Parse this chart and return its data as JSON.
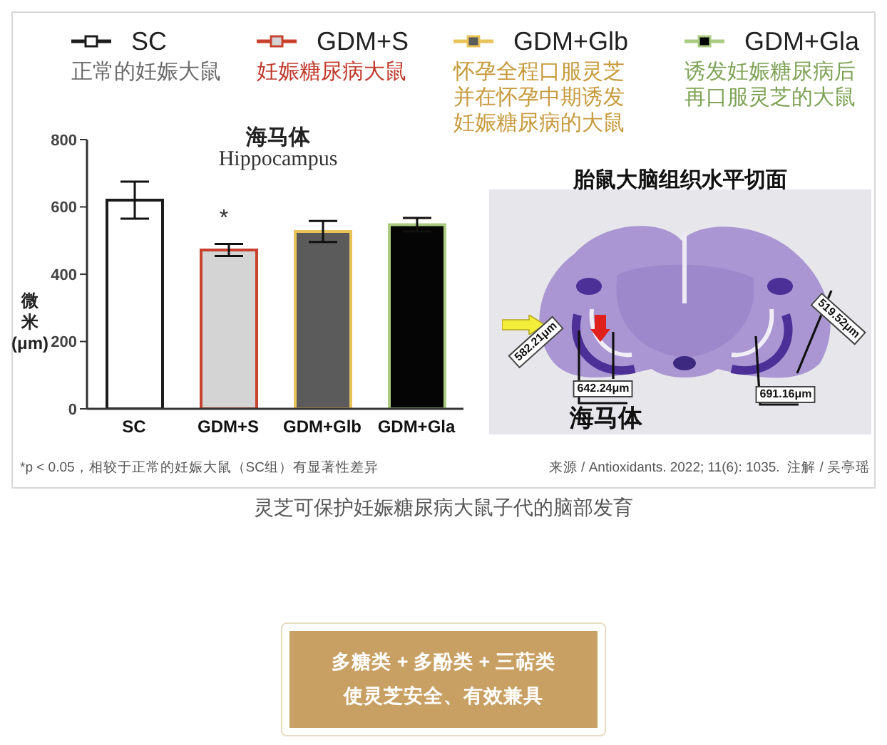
{
  "chart_data": [
    {
      "type": "bar",
      "title": "海马体",
      "subtitle": "Hippocampus",
      "ylabel": "微米(μm)",
      "categories": [
        "SC",
        "GDM+S",
        "GDM+Glb",
        "GDM+Gla"
      ],
      "series": [
        {
          "name": "SC",
          "color": "#ffffff",
          "values": [
            620,
            null,
            null,
            null
          ],
          "errors": [
            55,
            null,
            null,
            null
          ]
        },
        {
          "name": "GDM+S",
          "color": "#d4d4d4",
          "values": [
            null,
            472,
            null,
            null
          ],
          "errors": [
            null,
            18,
            null,
            null
          ]
        },
        {
          "name": "GDM+Glb",
          "color": "#5b5b5b",
          "values": [
            null,
            null,
            527,
            null
          ],
          "errors": [
            null,
            null,
            31,
            null
          ]
        },
        {
          "name": "GDM+Gla",
          "color": "#050505",
          "values": [
            null,
            null,
            null,
            547
          ],
          "errors": [
            null,
            null,
            null,
            20
          ]
        }
      ],
      "ylim": [
        0,
        800
      ],
      "yticks": [
        0,
        200,
        400,
        600,
        800
      ],
      "legend": "top",
      "annotations": [
        "正常的妊娠大鼠",
        "妊娠糖尿病大鼠",
        "怀孕全程口服灵芝并在怀孕中期诱发妊娠糖尿病的大鼠",
        "诱发妊娠糖尿病后再口服灵芝的大鼠",
        "*",
        "*p < 0.05，相较于正常的妊娠大鼠（SC组）有显著性差异",
        "来源 / Antioxidants. 2022; 11(6): 1035.  注解 / 吴亭瑶",
        "灵芝可保护妊娠糖尿病大鼠子代的脑部发育",
        "多糖类 + 多酚类 + 三萜类",
        "使灵芝安全、有效兼具"
      ]
    },
    {
      "type": "other",
      "title": "胎鼠大脑组织水平切面",
      "annotations": [
        "582.21μm",
        "642.24μm",
        "691.16μm",
        "519.52μm",
        "海马体"
      ]
    }
  ]
}
